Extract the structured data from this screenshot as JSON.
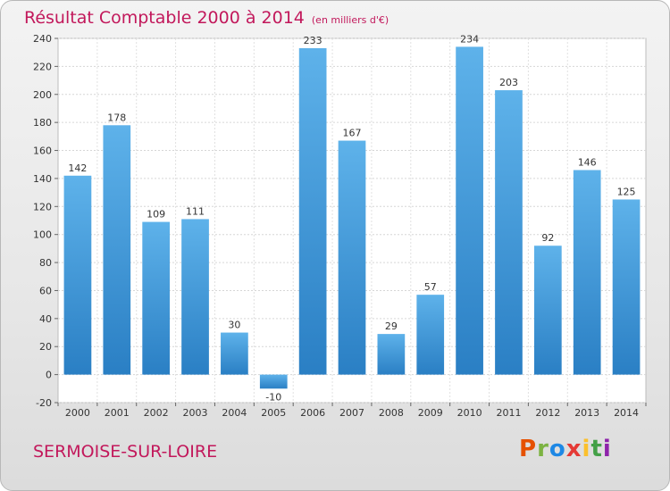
{
  "header": {
    "title": "Résultat Comptable 2000 à 2014",
    "unit": "(en milliers d'€)"
  },
  "footer": {
    "city": "SERMOISE-SUR-LOIRE",
    "logo": "Proxiti"
  },
  "colors": {
    "title": "#c2185b",
    "bar_top": "#5eb2ea",
    "bar_bottom": "#2a7fc4",
    "logo_letters": [
      "#e65100",
      "#7cb342",
      "#1e88e5",
      "#e53935",
      "#fbc02d",
      "#43a047",
      "#8e24aa"
    ]
  },
  "chart_data": {
    "type": "bar",
    "title": "Résultat Comptable 2000 à 2014",
    "categories": [
      "2000",
      "2001",
      "2002",
      "2003",
      "2004",
      "2005",
      "2006",
      "2007",
      "2008",
      "2009",
      "2010",
      "2011",
      "2012",
      "2013",
      "2014"
    ],
    "values": [
      142,
      178,
      109,
      111,
      30,
      -10,
      233,
      167,
      29,
      57,
      234,
      203,
      92,
      146,
      125
    ],
    "value_labels": [
      "142",
      "178",
      "109",
      "111",
      "30",
      "-10",
      "233",
      "167",
      "29",
      "57",
      "234",
      "203",
      "92",
      "146",
      "125"
    ],
    "yticks": [
      -20,
      0,
      20,
      40,
      60,
      80,
      100,
      120,
      140,
      160,
      180,
      200,
      220,
      240
    ],
    "ylim": [
      -20,
      240
    ],
    "grid": true
  }
}
